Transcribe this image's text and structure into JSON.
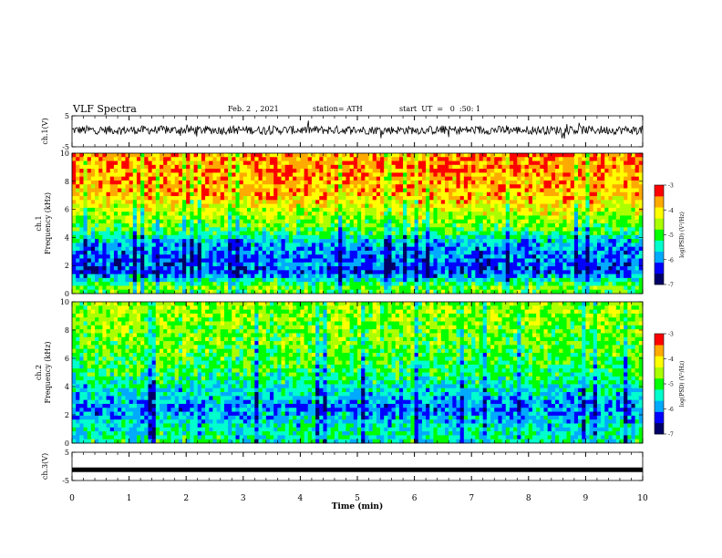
{
  "header": {
    "title": "VLF Spectra",
    "date": "Feb. 2  , 2021",
    "station": "station= ATH",
    "start": "start  UT  =   0  :50: 1"
  },
  "chart_data": {
    "type": "heatmap",
    "title": "VLF Spectra",
    "xlabel": "Time  (min)",
    "xlim": [
      0,
      10
    ],
    "xticks": [
      "0",
      "1",
      "2",
      "3",
      "4",
      "5",
      "6",
      "7",
      "8",
      "9",
      "10"
    ],
    "panels": [
      {
        "id": "ch1-waveform",
        "kind": "waveform",
        "ylabel": "ch.1(V)",
        "ylim": [
          -5,
          5
        ],
        "yticks": [
          "5",
          "-5"
        ],
        "note": "noisy broadband signal between about -1 and 2 V"
      },
      {
        "id": "ch1-spectrogram",
        "kind": "spectrogram",
        "ylabel_top": "ch.1",
        "ylabel": "Frequency  (kHz)",
        "ylim": [
          0,
          10
        ],
        "yticks": [
          "0",
          "2",
          "4",
          "6",
          "8",
          "10"
        ],
        "profile": [
          {
            "f": 0.5,
            "level": -4.8
          },
          {
            "f": 1.5,
            "level": -6.2
          },
          {
            "f": 2.5,
            "level": -6.0
          },
          {
            "f": 3.5,
            "level": -5.8
          },
          {
            "f": 4.5,
            "level": -5.0
          },
          {
            "f": 5.5,
            "level": -4.5
          },
          {
            "f": 7.0,
            "level": -3.8
          },
          {
            "f": 9.0,
            "level": -3.6
          }
        ],
        "colorbar": {
          "label": "log(PSD) (V²/Hz)",
          "range": [
            -7,
            -3
          ],
          "ticks": [
            "-3",
            "-4",
            "-5",
            "-6",
            "-7"
          ]
        }
      },
      {
        "id": "ch2-spectrogram",
        "kind": "spectrogram",
        "ylabel_top": "ch.2",
        "ylabel": "Frequency  (kHz)",
        "ylim": [
          0,
          10
        ],
        "yticks": [
          "0",
          "2",
          "4",
          "6",
          "8",
          "10"
        ],
        "profile": [
          {
            "f": 0.5,
            "level": -5.4
          },
          {
            "f": 1.5,
            "level": -5.6
          },
          {
            "f": 2.5,
            "level": -6.0
          },
          {
            "f": 3.5,
            "level": -5.6
          },
          {
            "f": 5.0,
            "level": -5.1
          },
          {
            "f": 7.0,
            "level": -4.8
          },
          {
            "f": 9.0,
            "level": -4.6
          }
        ],
        "colorbar": {
          "label": "log(PSD) (V²/Hz)",
          "range": [
            -7,
            -3
          ],
          "ticks": [
            "-3",
            "-4",
            "-5",
            "-6",
            "-7"
          ]
        }
      },
      {
        "id": "ch3-waveform",
        "kind": "waveform",
        "ylabel": "ch.3(V)",
        "ylim": [
          -5,
          5
        ],
        "yticks": [
          "5",
          "-5"
        ],
        "note": "flat line near -1.2 V"
      }
    ]
  },
  "colors": {
    "colormap": [
      "#000066",
      "#0000ff",
      "#00aaff",
      "#00ffcc",
      "#00ff00",
      "#aaff00",
      "#ffff00",
      "#ffaa00",
      "#ff0000",
      "#ffffff"
    ]
  }
}
